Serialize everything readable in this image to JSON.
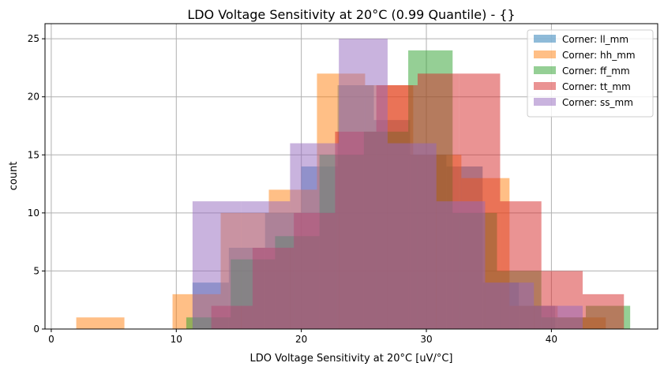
{
  "chart_data": {
    "type": "bar",
    "subtype": "histogram-overlay",
    "title": "LDO Voltage Sensitivity at 20°C (0.99 Quantile) - {}",
    "xlabel": "LDO Voltage Sensitivity at 20°C [uV/°C]",
    "ylabel": "count",
    "xlim": [
      -0.5,
      48.5
    ],
    "ylim": [
      0,
      26.3
    ],
    "xticks": [
      "0",
      "10",
      "20",
      "30",
      "40"
    ],
    "yticks": [
      "0",
      "5",
      "10",
      "15",
      "20",
      "25"
    ],
    "grid": true,
    "legend_position": "top-right",
    "series": [
      {
        "name": "Corner: ll_mm",
        "color": "#1f77b4",
        "bin_start": 11.3,
        "bin_width": 2.9,
        "counts": [
          4,
          7,
          10,
          14,
          21,
          18,
          15,
          14,
          4,
          2
        ]
      },
      {
        "name": "Corner: hh_mm",
        "color": "#ff7f0e",
        "bin_start": 2.0,
        "bin_width": 3.85,
        "counts": [
          1,
          0,
          3,
          10,
          12,
          22,
          21,
          15,
          13,
          2,
          1
        ]
      },
      {
        "name": "Corner: ff_mm",
        "color": "#2ca02c",
        "bin_start": 10.8,
        "bin_width": 3.55,
        "counts": [
          1,
          6,
          8,
          15,
          17,
          24,
          10,
          5,
          1,
          2
        ]
      },
      {
        "name": "Corner: tt_mm",
        "color": "#d62728",
        "bin_start": 12.8,
        "bin_width": 3.3,
        "counts": [
          2,
          7,
          10,
          17,
          21,
          22,
          22,
          11,
          5,
          3
        ]
      },
      {
        "name": "Corner: ss_mm",
        "color": "#9467bd",
        "bin_start": 11.3,
        "bin_width": 3.9,
        "counts": [
          11,
          11,
          16,
          25,
          16,
          11,
          4,
          2
        ]
      }
    ]
  }
}
